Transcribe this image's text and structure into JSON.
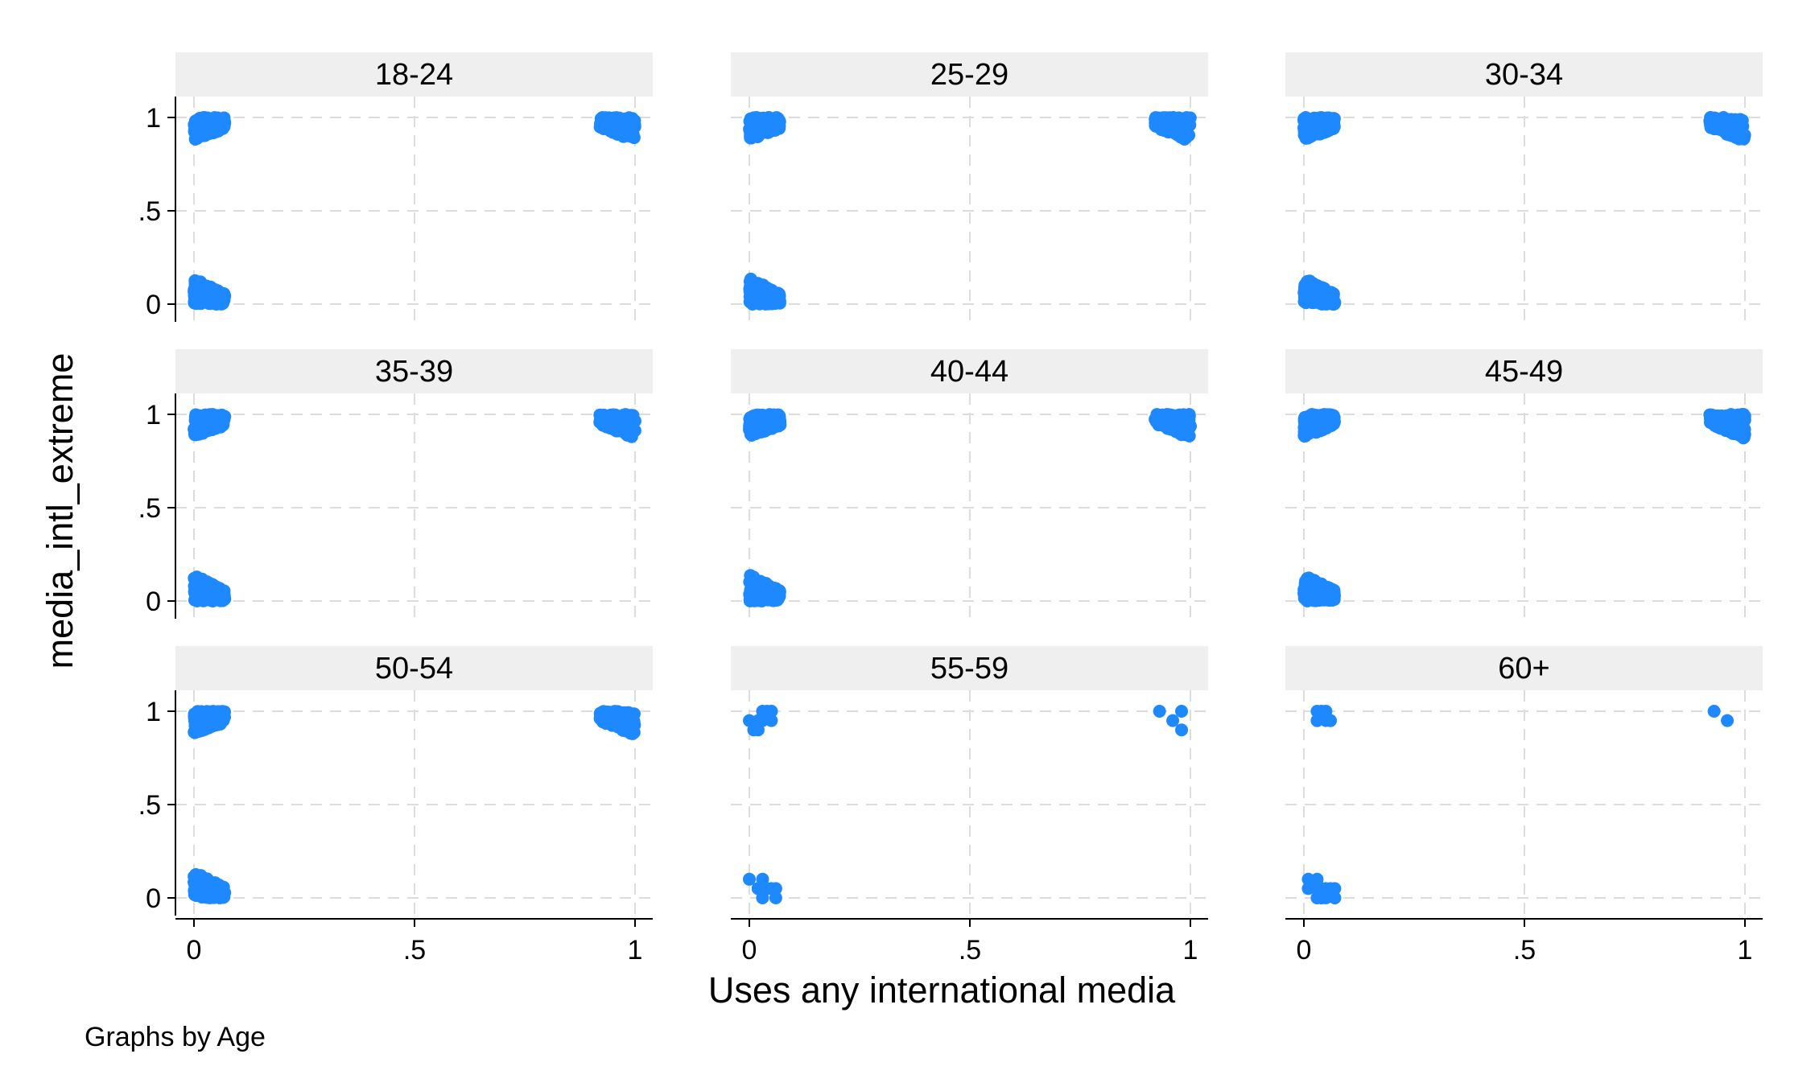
{
  "chart_data": {
    "type": "scatter",
    "xlabel": "Uses any international media",
    "ylabel": "media_intl_extreme",
    "note": "Graphs by Age",
    "xlim": [
      0,
      1
    ],
    "ylim": [
      0,
      1
    ],
    "xticks": [
      0,
      0.5,
      1
    ],
    "yticks": [
      0,
      0.5,
      1
    ],
    "xtick_labels": [
      "0",
      ".5",
      "1"
    ],
    "ytick_labels": [
      "0",
      ".5",
      "1"
    ],
    "grid": true,
    "marker_color": "#1E88FF",
    "panels": [
      {
        "label": "18-24",
        "density": "high"
      },
      {
        "label": "25-29",
        "density": "high"
      },
      {
        "label": "30-34",
        "density": "high"
      },
      {
        "label": "35-39",
        "density": "high"
      },
      {
        "label": "40-44",
        "density": "high"
      },
      {
        "label": "45-49",
        "density": "high"
      },
      {
        "label": "50-54",
        "density": "high"
      },
      {
        "label": "55-59",
        "density": "sparse"
      },
      {
        "label": "60+",
        "density": "sparse"
      }
    ]
  }
}
